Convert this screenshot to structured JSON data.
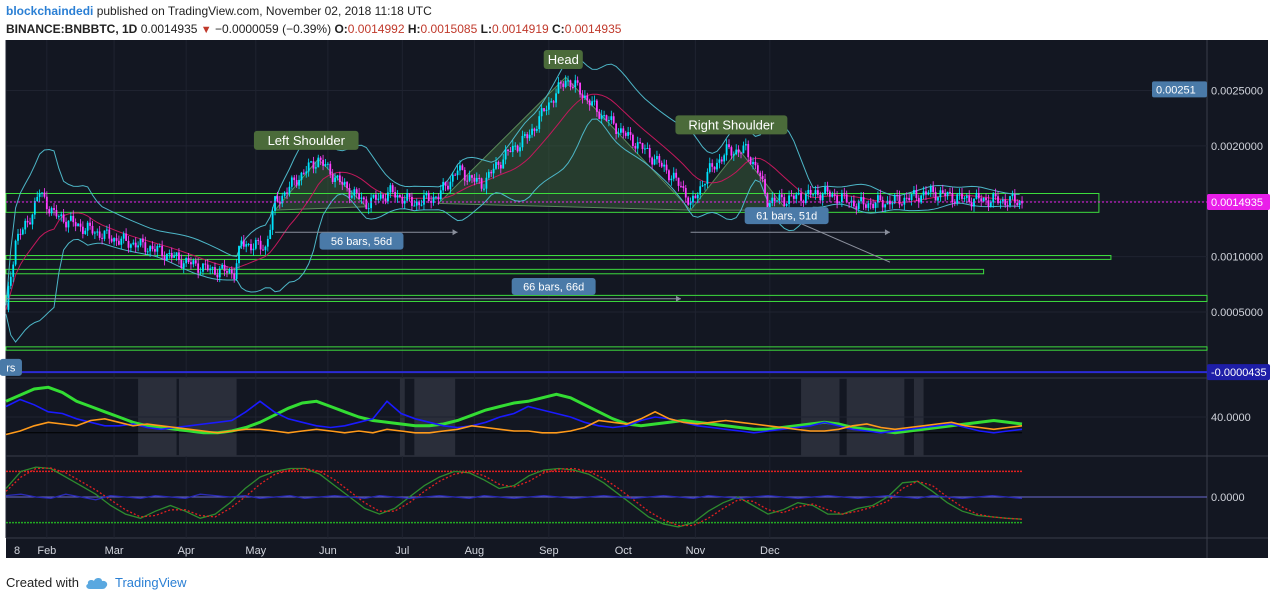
{
  "header": {
    "user": "blockchaindedi",
    "published": "published on TradingView.com, November 02, 2018 11:18 UTC",
    "symbol": "BINANCE:BNBBTC, 1D",
    "last": "0.0014935",
    "change": "−0.0000059 (−0.39%)",
    "o_label": "O:",
    "o": "0.0014992",
    "h_label": "H:",
    "h": "0.0015085",
    "l_label": "L:",
    "l": "0.0014919",
    "c_label": "C:",
    "c": "0.0014935"
  },
  "footer": {
    "created": "Created with",
    "brand": "TradingView"
  },
  "colors": {
    "pane_bg": "#131722",
    "bull": "#00e5ff",
    "bear": "#ff40ff",
    "bb": "#4db6c7",
    "ma": "#c2185b",
    "zone": "#3ddc3d",
    "price_tag": "#e91ee9",
    "neg_tag": "#1e1ea8",
    "label_bg": "#4a7aa8",
    "pattern_fill": "#3f6b3f"
  },
  "chart_data": [
    {
      "type": "candlestick",
      "title": "",
      "x_axis": {
        "tick_labels": [
          "8",
          "Feb",
          "Mar",
          "Apr",
          "May",
          "Jun",
          "Jul",
          "Aug",
          "Sep",
          "Oct",
          "Nov",
          "Dec"
        ]
      },
      "y_axis": {
        "tick_labels": [
          "0.0025000",
          "0.0020000",
          "0.0015000",
          "0.0010000",
          "0.0005000"
        ],
        "range": [
          -6e-05,
          0.00292
        ]
      },
      "top_tag": "0.00251",
      "last_price_tag": "0.0014935",
      "low_tag": "-0.0000435",
      "close_series": [
        {
          "x": 0,
          "y": 0.00052
        },
        {
          "x": 4,
          "y": 0.00115
        },
        {
          "x": 9,
          "y": 0.0013
        },
        {
          "x": 14,
          "y": 0.00158
        },
        {
          "x": 20,
          "y": 0.00138
        },
        {
          "x": 30,
          "y": 0.00128
        },
        {
          "x": 45,
          "y": 0.00116
        },
        {
          "x": 60,
          "y": 0.00108
        },
        {
          "x": 75,
          "y": 0.00095
        },
        {
          "x": 85,
          "y": 0.00088
        },
        {
          "x": 95,
          "y": 0.00086
        },
        {
          "x": 98,
          "y": 0.00112
        },
        {
          "x": 108,
          "y": 0.00108
        },
        {
          "x": 112,
          "y": 0.00148
        },
        {
          "x": 122,
          "y": 0.00172
        },
        {
          "x": 130,
          "y": 0.00188
        },
        {
          "x": 140,
          "y": 0.00165
        },
        {
          "x": 150,
          "y": 0.00148
        },
        {
          "x": 160,
          "y": 0.00158
        },
        {
          "x": 170,
          "y": 0.00148
        },
        {
          "x": 180,
          "y": 0.00155
        },
        {
          "x": 188,
          "y": 0.00178
        },
        {
          "x": 198,
          "y": 0.00165
        },
        {
          "x": 208,
          "y": 0.00192
        },
        {
          "x": 218,
          "y": 0.0021
        },
        {
          "x": 225,
          "y": 0.00235
        },
        {
          "x": 233,
          "y": 0.0026
        },
        {
          "x": 238,
          "y": 0.00252
        },
        {
          "x": 246,
          "y": 0.00232
        },
        {
          "x": 255,
          "y": 0.00215
        },
        {
          "x": 265,
          "y": 0.00198
        },
        {
          "x": 275,
          "y": 0.00178
        },
        {
          "x": 283,
          "y": 0.00158
        },
        {
          "x": 285,
          "y": 0.00145
        },
        {
          "x": 292,
          "y": 0.00175
        },
        {
          "x": 300,
          "y": 0.00195
        },
        {
          "x": 308,
          "y": 0.00196
        },
        {
          "x": 313,
          "y": 0.00178
        },
        {
          "x": 317,
          "y": 0.0015
        },
        {
          "x": 325,
          "y": 0.00152
        },
        {
          "x": 340,
          "y": 0.00158
        },
        {
          "x": 355,
          "y": 0.00147
        },
        {
          "x": 370,
          "y": 0.0015
        },
        {
          "x": 385,
          "y": 0.00158
        },
        {
          "x": 400,
          "y": 0.00152
        },
        {
          "x": 420,
          "y": 0.0015
        },
        {
          "x": 423,
          "y": 0.001494
        }
      ],
      "annotations": [
        {
          "text": "Head",
          "x": 232,
          "y": 0.00278
        },
        {
          "text": "Left Shoulder",
          "x": 125,
          "y": 0.00205
        },
        {
          "text": "Right Shoulder",
          "x": 302,
          "y": 0.00219
        },
        {
          "text": "56 bars, 56d",
          "x": 148,
          "y": 0.00114
        },
        {
          "text": "61 bars, 51d",
          "x": 325,
          "y": 0.00137
        },
        {
          "text": "66 bars, 66d",
          "x": 228,
          "y": 0.00073
        },
        {
          "text": "rs",
          "x": 2,
          "y": 0.0
        }
      ],
      "zones": [
        {
          "x0": 0,
          "x1": 455,
          "y0": 0.0014,
          "y1": 0.00157
        },
        {
          "x0": 0,
          "x1": 460,
          "y0": 0.000975,
          "y1": 0.00101
        },
        {
          "x0": 0,
          "x1": 407,
          "y0": 0.000845,
          "y1": 0.000885
        },
        {
          "x0": 0,
          "x1": 500,
          "y0": 0.000595,
          "y1": 0.00065
        },
        {
          "x0": 0,
          "x1": 500,
          "y0": 0.000155,
          "y1": 0.000185
        }
      ],
      "neckline": {
        "y": 0.00142,
        "x0": 0,
        "x1": 500
      }
    },
    {
      "type": "line",
      "title": "",
      "y_axis": {
        "tick_labels": [
          "40.0000"
        ],
        "range": [
          0,
          80
        ]
      },
      "series": [
        {
          "color": "#33dd33",
          "values": [
            58,
            65,
            72,
            74,
            68,
            58,
            52,
            46,
            40,
            34,
            30,
            28,
            26,
            24,
            22,
            22,
            24,
            28,
            34,
            42,
            50,
            56,
            58,
            52,
            46,
            40,
            36,
            34,
            32,
            30,
            30,
            32,
            36,
            42,
            48,
            52,
            56,
            58,
            62,
            66,
            62,
            54,
            46,
            38,
            32,
            30,
            32,
            34,
            36,
            34,
            32,
            30,
            28,
            26,
            26,
            28,
            30,
            32,
            34,
            32,
            28,
            26,
            24,
            22,
            24,
            26,
            28,
            30,
            32,
            34,
            36,
            34,
            32
          ]
        },
        {
          "color": "#1a1aff",
          "values": [
            52,
            60,
            54,
            46,
            44,
            38,
            34,
            30,
            30,
            32,
            28,
            26,
            28,
            30,
            32,
            34,
            36,
            46,
            58,
            46,
            38,
            34,
            30,
            28,
            30,
            34,
            38,
            58,
            44,
            38,
            34,
            30,
            28,
            30,
            34,
            40,
            44,
            52,
            48,
            44,
            40,
            34,
            30,
            28,
            30,
            36,
            40,
            38,
            34,
            30,
            28,
            26,
            24,
            22,
            24,
            26,
            28,
            30,
            34,
            30,
            26,
            24,
            22,
            24,
            26,
            28,
            30,
            32,
            28,
            24,
            22,
            24,
            26
          ]
        },
        {
          "color": "#ff9a1a",
          "values": [
            20,
            24,
            30,
            34,
            32,
            30,
            36,
            38,
            34,
            30,
            32,
            30,
            28,
            26,
            24,
            22,
            24,
            26,
            26,
            24,
            22,
            24,
            26,
            24,
            22,
            24,
            22,
            26,
            24,
            22,
            22,
            24,
            26,
            30,
            28,
            26,
            24,
            24,
            22,
            22,
            24,
            28,
            36,
            34,
            32,
            38,
            46,
            38,
            34,
            32,
            34,
            36,
            34,
            32,
            30,
            28,
            26,
            24,
            24,
            26,
            30,
            32,
            28,
            26,
            28,
            30,
            32,
            34,
            30,
            28,
            26,
            28,
            30
          ]
        }
      ]
    },
    {
      "type": "line",
      "title": "",
      "y_axis": {
        "tick_labels": [
          "0.0000"
        ],
        "range": [
          -1.3,
          1.3
        ]
      },
      "series": [
        {
          "color": "#2e8b2e",
          "values": [
            0.3,
            0.9,
            1.05,
            1.0,
            0.7,
            0.4,
            0.1,
            -0.3,
            -0.6,
            -0.75,
            -0.5,
            -0.3,
            -0.5,
            -0.75,
            -0.6,
            -0.2,
            0.3,
            0.7,
            0.9,
            1.0,
            1.0,
            0.8,
            0.4,
            0.0,
            -0.4,
            -0.6,
            -0.4,
            0.0,
            0.4,
            0.7,
            0.9,
            0.85,
            0.6,
            0.3,
            0.4,
            0.75,
            0.95,
            1.0,
            0.95,
            0.8,
            0.5,
            0.1,
            -0.3,
            -0.7,
            -0.95,
            -1.05,
            -0.9,
            -0.5,
            -0.2,
            0.0,
            -0.3,
            -0.6,
            -0.45,
            -0.2,
            -0.3,
            -0.6,
            -0.6,
            -0.4,
            -0.3,
            0.0,
            0.5,
            0.55,
            0.2,
            -0.2,
            -0.5,
            -0.65,
            -0.7,
            -0.75,
            -0.78
          ]
        },
        {
          "color": "#e02020",
          "values": [
            0.2,
            0.7,
            1.0,
            1.02,
            0.85,
            0.55,
            0.25,
            -0.1,
            -0.45,
            -0.7,
            -0.65,
            -0.45,
            -0.45,
            -0.65,
            -0.7,
            -0.4,
            0.0,
            0.45,
            0.8,
            0.95,
            1.0,
            0.9,
            0.6,
            0.2,
            -0.2,
            -0.5,
            -0.5,
            -0.2,
            0.2,
            0.55,
            0.8,
            0.9,
            0.75,
            0.45,
            0.35,
            0.55,
            0.85,
            0.98,
            1.0,
            0.9,
            0.65,
            0.3,
            -0.1,
            -0.5,
            -0.8,
            -1.0,
            -1.0,
            -0.75,
            -0.4,
            -0.1,
            -0.15,
            -0.45,
            -0.55,
            -0.35,
            -0.25,
            -0.45,
            -0.6,
            -0.5,
            -0.35,
            -0.15,
            0.3,
            0.55,
            0.4,
            0.0,
            -0.35,
            -0.6,
            -0.7,
            -0.75,
            -0.78
          ]
        },
        {
          "color": "#2a2ab8",
          "values": [
            0.05,
            0.1,
            0.0,
            -0.05,
            0.1,
            0.0,
            -0.1,
            0.05,
            0.0,
            -0.05,
            0.05,
            0.0,
            -0.05,
            0.1,
            0.05,
            0.0,
            0.05,
            -0.05,
            0.0,
            0.05,
            -0.05,
            0.0,
            0.05,
            0.0,
            -0.05,
            0.05,
            0.0,
            -0.05,
            0.0,
            0.05,
            0.0,
            -0.05,
            0.05,
            0.0,
            -0.05,
            0.0,
            0.05,
            0.0,
            -0.05,
            0.0,
            0.05,
            0.0,
            -0.05,
            0.0,
            0.05,
            0.0,
            -0.05,
            0.05,
            0.0,
            -0.05,
            0.0,
            0.05,
            0.0,
            -0.05,
            0.0,
            0.05,
            0.0,
            -0.05,
            0.0,
            0.05,
            0.0,
            -0.05,
            0.05,
            0.0,
            -0.05,
            0.0,
            0.05,
            0.0,
            -0.05
          ]
        }
      ],
      "upper_band": 0.9,
      "lower_band": -0.9
    }
  ]
}
